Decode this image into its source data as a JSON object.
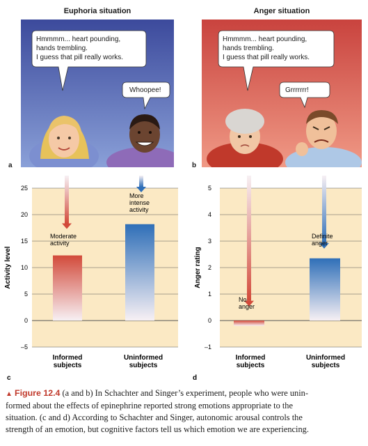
{
  "panels": {
    "a": {
      "title": "Euphoria situation",
      "letter": "a",
      "bubble_main": [
        "Hmmmm... heart pounding,",
        "hands trembling.",
        "I guess that pill really works."
      ],
      "bubble_second": "Whoopee!"
    },
    "b": {
      "title": "Anger situation",
      "letter": "b",
      "bubble_main": [
        "Hmmmm... heart pounding,",
        "hands trembling.",
        "I guess that pill really works."
      ],
      "bubble_second": "Grrrrrrr!"
    }
  },
  "colors": {
    "euphoria_sky": "#4a5aa8",
    "anger_sky": "#d9534f",
    "chart_bg": "#fbe9c4",
    "red_bar": "#d24a3a",
    "blue_bar": "#2f6fb8",
    "accent": "#c0392b"
  },
  "chart_data": [
    {
      "type": "bar",
      "letter": "c",
      "ylabel": "Activity level",
      "ylim": [
        -5,
        25
      ],
      "yticks": [
        -5,
        0,
        5,
        10,
        15,
        20,
        25
      ],
      "grid": true,
      "categories": [
        [
          "Informed",
          "subjects"
        ],
        [
          "Uninformed",
          "subjects"
        ]
      ],
      "values": [
        12.3,
        18.2
      ],
      "annotations": [
        [
          "Moderate",
          "activity"
        ],
        [
          "More",
          "intense",
          "activity"
        ]
      ]
    },
    {
      "type": "bar",
      "letter": "d",
      "ylabel": "Anger rating",
      "ylim": [
        -1,
        5
      ],
      "yticks": [
        -1,
        0,
        1,
        2,
        3,
        4,
        5
      ],
      "grid": true,
      "categories": [
        [
          "Informed",
          "subjects"
        ],
        [
          "Uninformed",
          "subjects"
        ]
      ],
      "values": [
        -0.2,
        2.35
      ],
      "annotations": [
        [
          "No",
          "anger"
        ],
        [
          "Definite",
          "anger"
        ]
      ]
    }
  ],
  "caption": {
    "marker": "▲",
    "figure_label": "Figure 12.4",
    "lines": [
      " (a and b) In Schachter and Singer’s experiment, people who were unin-",
      "formed about the effects of epinephrine reported strong emotions appropriate to the",
      "situation. (c and d) According to Schachter and Singer, autonomic arousal controls the",
      "strength of an emotion, but cognitive factors tell us which emotion we are experiencing."
    ]
  }
}
